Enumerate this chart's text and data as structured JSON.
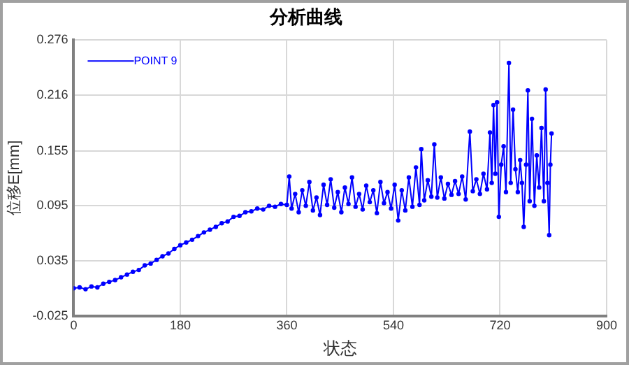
{
  "chart_data": {
    "type": "line",
    "title": "分析曲线",
    "xlabel": "状态",
    "ylabel": "位移E[mm]",
    "xlim": [
      0,
      900
    ],
    "xticks": [
      0,
      180,
      360,
      540,
      720,
      900
    ],
    "ylim": [
      -0.025,
      0.276
    ],
    "yticks": [
      -0.025,
      0.035,
      0.095,
      0.155,
      0.216,
      0.276
    ],
    "grid": true,
    "legend": "top left",
    "marker": "circle",
    "line_style": "solid",
    "series": [
      {
        "name": "POINT 9",
        "color": "#0000ff",
        "x": [
          0,
          10,
          20,
          30,
          40,
          50,
          60,
          70,
          80,
          90,
          100,
          110,
          120,
          130,
          140,
          150,
          160,
          170,
          180,
          190,
          200,
          210,
          220,
          230,
          240,
          250,
          260,
          270,
          280,
          290,
          300,
          310,
          320,
          330,
          340,
          350,
          360,
          364,
          368,
          374,
          380,
          386,
          392,
          398,
          404,
          410,
          416,
          422,
          428,
          434,
          440,
          446,
          452,
          458,
          464,
          470,
          476,
          482,
          488,
          494,
          500,
          506,
          512,
          518,
          524,
          530,
          536,
          542,
          548,
          554,
          560,
          566,
          572,
          578,
          584,
          587,
          592,
          598,
          604,
          609,
          614,
          620,
          626,
          632,
          638,
          644,
          650,
          656,
          662,
          669,
          674,
          680,
          686,
          692,
          698,
          703,
          706,
          709,
          712,
          715,
          718,
          722,
          726,
          730,
          735,
          738,
          742,
          746,
          750,
          754,
          757,
          760,
          764,
          767,
          770,
          774,
          778,
          782,
          786,
          790,
          794,
          797,
          800,
          803,
          805,
          807
        ],
        "values": [
          0.005,
          0.006,
          0.004,
          0.007,
          0.006,
          0.01,
          0.012,
          0.014,
          0.017,
          0.02,
          0.023,
          0.025,
          0.03,
          0.032,
          0.036,
          0.04,
          0.043,
          0.048,
          0.052,
          0.055,
          0.058,
          0.062,
          0.066,
          0.069,
          0.072,
          0.076,
          0.078,
          0.083,
          0.084,
          0.088,
          0.089,
          0.092,
          0.091,
          0.095,
          0.094,
          0.097,
          0.096,
          0.127,
          0.092,
          0.108,
          0.088,
          0.112,
          0.095,
          0.121,
          0.09,
          0.104,
          0.085,
          0.118,
          0.096,
          0.124,
          0.093,
          0.11,
          0.088,
          0.115,
          0.097,
          0.126,
          0.094,
          0.108,
          0.091,
          0.117,
          0.099,
          0.112,
          0.087,
          0.121,
          0.098,
          0.11,
          0.092,
          0.118,
          0.079,
          0.112,
          0.09,
          0.126,
          0.094,
          0.137,
          0.096,
          0.157,
          0.101,
          0.123,
          0.105,
          0.162,
          0.104,
          0.126,
          0.103,
          0.119,
          0.107,
          0.122,
          0.108,
          0.127,
          0.102,
          0.176,
          0.111,
          0.124,
          0.108,
          0.13,
          0.113,
          0.175,
          0.12,
          0.205,
          0.13,
          0.208,
          0.083,
          0.14,
          0.16,
          0.11,
          0.251,
          0.12,
          0.2,
          0.135,
          0.11,
          0.145,
          0.12,
          0.072,
          0.14,
          0.221,
          0.1,
          0.19,
          0.095,
          0.15,
          0.115,
          0.18,
          0.1,
          0.222,
          0.12,
          0.063,
          0.14,
          0.174
        ]
      }
    ]
  }
}
